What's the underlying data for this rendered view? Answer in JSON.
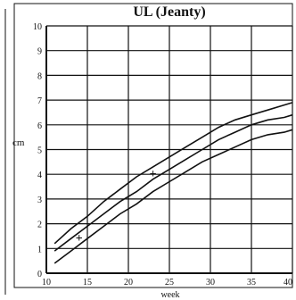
{
  "chart_data": {
    "type": "line",
    "title": "UL (Jeanty)",
    "xlabel": "week",
    "ylabel": "cm",
    "xlim": [
      10,
      40
    ],
    "ylim": [
      0,
      10
    ],
    "x_ticks": [
      {
        "value": 10,
        "label": "10"
      },
      {
        "value": 15,
        "label": "15"
      },
      {
        "value": 20,
        "label": "20"
      },
      {
        "value": 25,
        "label": "25"
      },
      {
        "value": 30,
        "label": "30"
      },
      {
        "value": 35,
        "label": "35"
      },
      {
        "value": 40,
        "label": "40"
      }
    ],
    "y_ticks": [
      {
        "value": 0,
        "label": "0"
      },
      {
        "value": 1,
        "label": "1"
      },
      {
        "value": 2,
        "label": "2"
      },
      {
        "value": 3,
        "label": "3"
      },
      {
        "value": 4,
        "label": "4"
      },
      {
        "value": 5,
        "label": "5"
      },
      {
        "value": 6,
        "label": "6"
      },
      {
        "value": 7,
        "label": "7"
      },
      {
        "value": 8,
        "label": "8"
      },
      {
        "value": 9,
        "label": "9"
      },
      {
        "value": 10,
        "label": "10"
      }
    ],
    "grid": true,
    "series": [
      {
        "x": [
          11,
          13,
          15,
          17,
          19,
          21,
          23,
          25,
          27,
          29,
          31,
          33,
          35,
          37,
          39,
          40
        ],
        "values": [
          1.2,
          1.8,
          2.3,
          2.9,
          3.4,
          3.9,
          4.3,
          4.7,
          5.1,
          5.5,
          5.9,
          6.2,
          6.4,
          6.6,
          6.8,
          6.9
        ]
      },
      {
        "x": [
          11,
          13,
          15,
          17,
          19,
          21,
          23,
          25,
          27,
          29,
          31,
          33,
          35,
          37,
          39,
          40
        ],
        "values": [
          0.9,
          1.4,
          1.9,
          2.4,
          2.9,
          3.3,
          3.8,
          4.2,
          4.6,
          5.0,
          5.4,
          5.7,
          6.0,
          6.2,
          6.3,
          6.4
        ]
      },
      {
        "x": [
          11,
          13,
          15,
          17,
          19,
          21,
          23,
          25,
          27,
          29,
          31,
          33,
          35,
          37,
          39,
          40
        ],
        "values": [
          0.4,
          0.9,
          1.4,
          1.9,
          2.4,
          2.8,
          3.3,
          3.7,
          4.1,
          4.5,
          4.8,
          5.1,
          5.4,
          5.6,
          5.7,
          5.8
        ]
      }
    ],
    "markers": [
      {
        "x": 14,
        "y": 1.4,
        "symbol": "+"
      },
      {
        "x": 23,
        "y": 4.0,
        "symbol": "+"
      }
    ],
    "colors": {
      "axis": "#111111",
      "grid": "#111111",
      "line": "#111111",
      "background": "#ffffff",
      "text": "#111111"
    }
  }
}
